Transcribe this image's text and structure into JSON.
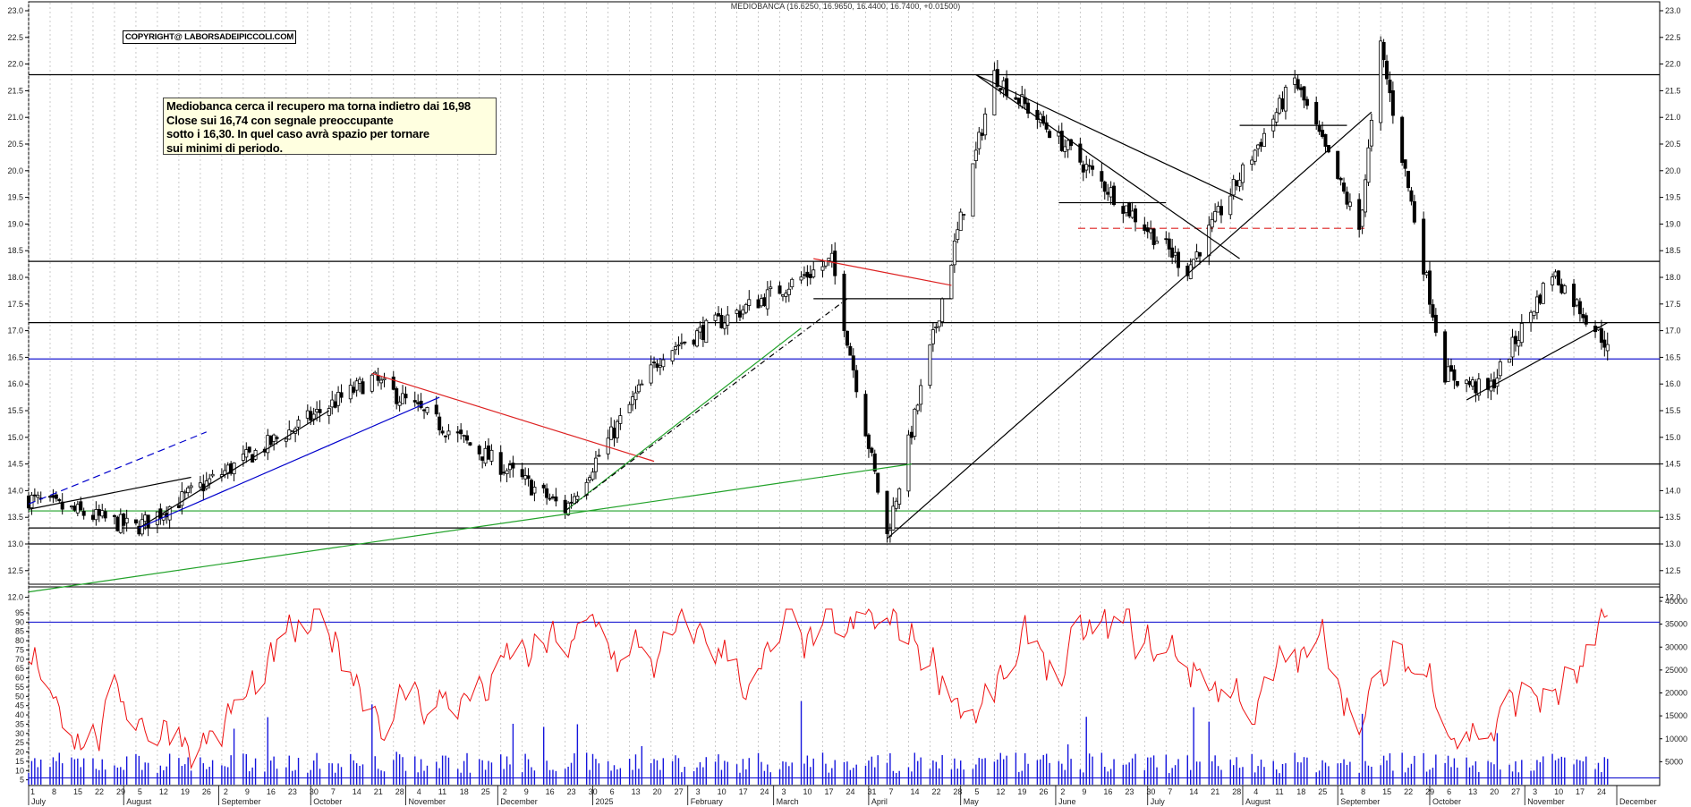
{
  "chart_title": "MEDIOBANCA (16.6250, 16.9650, 16.4400, 16.7400, +0.01500)",
  "copyright": "COPYRIGHT@ LABORSADEIPICCOLI.COM",
  "note_lines": [
    "Mediobanca cerca il recupero ma torna indietro dai 16,98",
    "Close sui 16,74  con segnale preoccupante",
    "sotto i 16,30. In quel caso avrà spazio per tornare",
    "sui minimi di periodo."
  ],
  "colors": {
    "candle": "#000000",
    "grid": "#bdbdbd",
    "blue_line": "#0000cc",
    "red_line": "#dd2222",
    "green_line": "#22a22a",
    "osc": "#ee1111",
    "volume": "#1515dd"
  },
  "chart_data": [
    {
      "type": "candlestick",
      "title": "MEDIOBANCA (16.6250, 16.9650, 16.4400, 16.7400, +0.01500)",
      "ylim": [
        12.0,
        23.0
      ],
      "y_ticks": [
        12.0,
        12.5,
        13.0,
        13.5,
        14.0,
        14.5,
        15.0,
        15.5,
        16.0,
        16.5,
        17.0,
        17.5,
        18.0,
        18.5,
        19.0,
        19.5,
        20.0,
        20.5,
        21.0,
        21.5,
        22.0,
        22.5,
        23.0
      ],
      "x_day_labels": [
        "1",
        "8",
        "15",
        "22",
        "29",
        "5",
        "12",
        "19",
        "26",
        "2",
        "9",
        "16",
        "23",
        "30",
        "7",
        "14",
        "21",
        "28",
        "4",
        "11",
        "18",
        "25",
        "2",
        "9",
        "16",
        "23",
        "30",
        "6",
        "13",
        "20",
        "27",
        "3",
        "10",
        "17",
        "24",
        "3",
        "10",
        "17",
        "24",
        "31",
        "7",
        "14",
        "22",
        "28",
        "5",
        "12",
        "19",
        "26",
        "2",
        "9",
        "16",
        "23",
        "30",
        "7",
        "14",
        "21",
        "28",
        "4",
        "11",
        "18",
        "25",
        "1",
        "8",
        "15",
        "22",
        "29",
        "6",
        "13",
        "20",
        "27",
        "3",
        "10",
        "17",
        "24",
        "1",
        "8",
        "15"
      ],
      "x_month_labels": [
        "July",
        "August",
        "September",
        "October",
        "November",
        "December",
        "2025",
        "February",
        "March",
        "April",
        "May",
        "June",
        "July",
        "August",
        "September",
        "October",
        "November",
        "December"
      ],
      "key_closes": [
        {
          "date": "2024-07-01",
          "close": 13.85
        },
        {
          "date": "2024-08-05",
          "close": 13.3
        },
        {
          "date": "2024-10-21",
          "close": 16.1
        },
        {
          "date": "2024-12-23",
          "close": 13.65
        },
        {
          "date": "2025-01-24",
          "close": 16.6
        },
        {
          "date": "2025-03-20",
          "close": 18.3
        },
        {
          "date": "2025-04-07",
          "close": 13.15
        },
        {
          "date": "2025-05-12",
          "close": 21.8
        },
        {
          "date": "2025-07-14",
          "close": 18.15
        },
        {
          "date": "2025-08-18",
          "close": 21.7
        },
        {
          "date": "2025-09-08",
          "close": 18.9
        },
        {
          "date": "2025-09-15",
          "close": 22.3
        },
        {
          "date": "2025-10-06",
          "close": 16.2
        },
        {
          "date": "2025-10-20",
          "close": 15.85
        },
        {
          "date": "2025-11-10",
          "close": 18.1
        },
        {
          "date": "2025-11-28",
          "close": 16.74
        }
      ],
      "last_bar": {
        "open": 16.625,
        "high": 16.965,
        "low": 16.44,
        "close": 16.74,
        "change": 0.015
      },
      "horizontal_levels": [
        {
          "value": 21.8,
          "color": "black"
        },
        {
          "value": 18.3,
          "color": "black"
        },
        {
          "value": 17.15,
          "color": "black"
        },
        {
          "value": 16.47,
          "color": "blue"
        },
        {
          "value": 14.5,
          "color": "black"
        },
        {
          "value": 13.62,
          "color": "green"
        },
        {
          "value": 13.3,
          "color": "black"
        },
        {
          "value": 13.0,
          "color": "black"
        },
        {
          "value": 18.92,
          "color": "red",
          "dashed": true
        }
      ]
    },
    {
      "type": "line",
      "name": "oscillator",
      "ylim": [
        0,
        100
      ],
      "y_ticks": [
        5,
        10,
        15,
        20,
        25,
        30,
        35,
        40,
        45,
        50,
        55,
        60,
        65,
        70,
        75,
        80,
        85,
        90,
        95
      ],
      "levels": [
        90,
        6
      ]
    },
    {
      "type": "bar",
      "name": "volume",
      "ylim": [
        0,
        40000
      ],
      "y_ticks": [
        5000,
        10000,
        15000,
        20000,
        25000,
        30000,
        35000,
        40000
      ]
    }
  ]
}
